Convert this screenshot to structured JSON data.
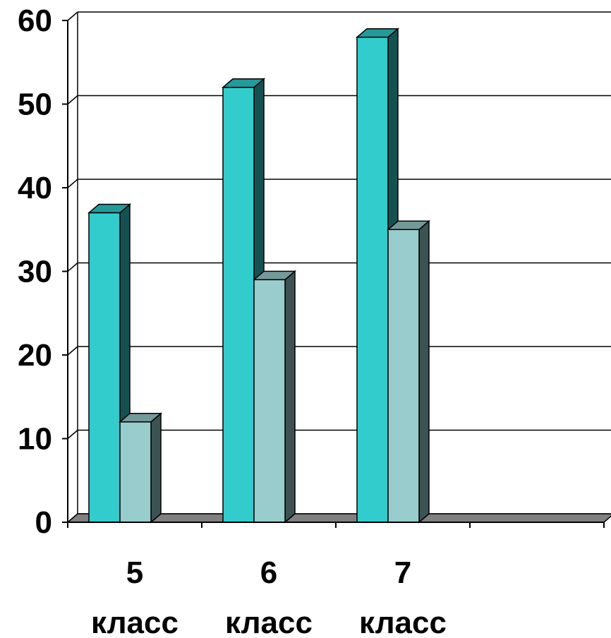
{
  "chart_data": {
    "type": "bar",
    "categories": [
      {
        "line1": "5",
        "line2": "класс"
      },
      {
        "line1": "6",
        "line2": "класс"
      },
      {
        "line1": "7",
        "line2": "класс"
      },
      {
        "line1": "",
        "line2": ""
      }
    ],
    "series": [
      {
        "values": [
          37,
          52,
          58,
          null
        ],
        "color": "#33cccc"
      },
      {
        "values": [
          12,
          29,
          35,
          null
        ],
        "color": "#99cccc"
      }
    ],
    "yticks": [
      "0",
      "10",
      "20",
      "30",
      "40",
      "50",
      "60"
    ],
    "ylim": [
      0,
      60
    ],
    "grid": true,
    "style": "3d-column"
  }
}
